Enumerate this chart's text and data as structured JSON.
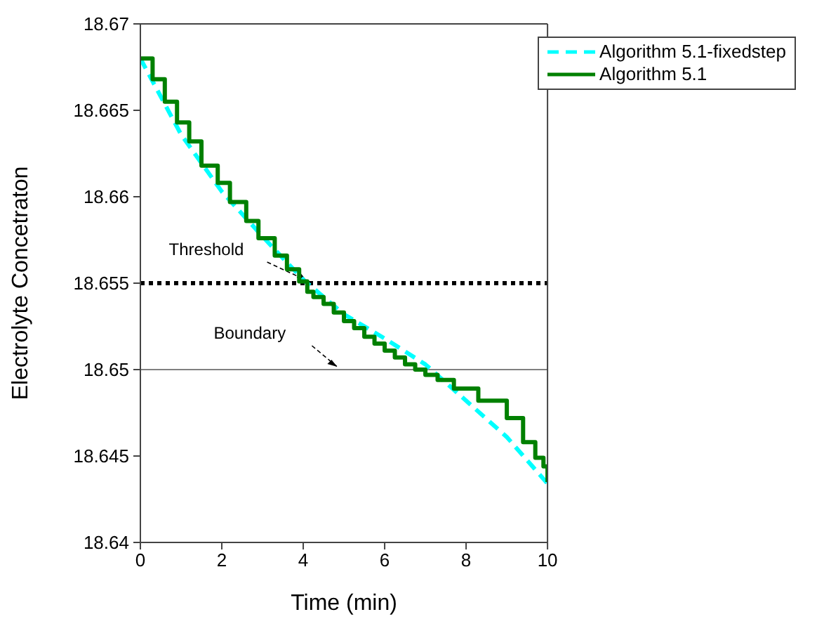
{
  "chart_data": {
    "type": "line",
    "xlabel": "Time (min)",
    "ylabel": "Electrolyte Concetraton",
    "xlim": [
      0,
      10
    ],
    "xticks": [
      0,
      2,
      4,
      6,
      8,
      10
    ],
    "ylim": [
      18.64,
      18.67
    ],
    "yticks": [
      18.64,
      18.645,
      18.65,
      18.655,
      18.66,
      18.665,
      18.67
    ],
    "grid": false,
    "legend": "top right",
    "marker": "none",
    "series": [
      {
        "name": "Algorithm 5.1-fixedstep",
        "color": "#00ffff",
        "line_style": "dashed",
        "x": [
          0,
          1,
          2,
          3,
          4,
          5,
          6,
          7,
          8,
          9,
          10
        ],
        "values": [
          18.668,
          18.6636,
          18.6603,
          18.6577,
          18.6552,
          18.6532,
          18.6518,
          18.6503,
          18.6482,
          18.6461,
          18.6434
        ]
      },
      {
        "name": "Algorithm 5.1",
        "color": "#008000",
        "type": "step",
        "line_style": "solid",
        "x": [
          0,
          0.3,
          0.6,
          0.9,
          1.2,
          1.5,
          1.9,
          2.2,
          2.6,
          2.9,
          3.3,
          3.6,
          3.9,
          4.1,
          4.25,
          4.5,
          4.75,
          5,
          5.25,
          5.5,
          5.75,
          6,
          6.25,
          6.5,
          6.75,
          7,
          7.3,
          7.7,
          8.3,
          9,
          9.4,
          9.7,
          9.9,
          10
        ],
        "values": [
          18.668,
          18.6668,
          18.6655,
          18.6643,
          18.6632,
          18.6618,
          18.6608,
          18.6597,
          18.6586,
          18.6576,
          18.6566,
          18.6558,
          18.6551,
          18.6545,
          18.6542,
          18.6538,
          18.6533,
          18.6528,
          18.6524,
          18.6519,
          18.6515,
          18.6511,
          18.6507,
          18.6503,
          18.65,
          18.6497,
          18.6494,
          18.6489,
          18.6482,
          18.6472,
          18.6458,
          18.6449,
          18.6444,
          18.6435
        ]
      }
    ],
    "ref_lines": [
      {
        "axis": "y",
        "value": 18.655,
        "label": "Threshold",
        "color": "#000000",
        "line_style": "dotted"
      },
      {
        "axis": "y",
        "value": 18.65,
        "label": "Boundary",
        "color": "#808080",
        "line_style": "solid"
      }
    ]
  }
}
